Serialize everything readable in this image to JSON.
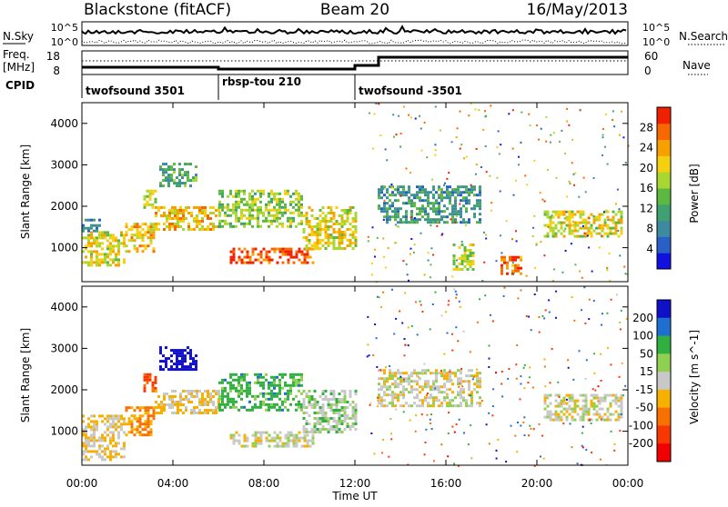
{
  "header": {
    "station": "Blackstone (fitACF)",
    "beam": "Beam 20",
    "date": "16/May/2013"
  },
  "noise_panel": {
    "left_label": "N.Sky",
    "right_label": "N.Search",
    "left_ticks": [
      "10^5",
      "10^0"
    ],
    "right_ticks": [
      "10^5",
      "10^0"
    ]
  },
  "freq_panel": {
    "left_label_line1": "Freq.",
    "left_label_line2": "[MHz]",
    "left_ticks": [
      "18",
      "8"
    ],
    "right_ticks": [
      "60",
      "0"
    ],
    "right_label": "Nave",
    "cpid_label": "CPID"
  },
  "cpid_modes": [
    {
      "name": "twofsound 3501",
      "start_hour": 0
    },
    {
      "name": "rbsp-tou 210",
      "start_hour": 6
    },
    {
      "name": "twofsound -3501",
      "start_hour": 12
    }
  ],
  "chart_data": [
    {
      "type": "heatmap",
      "name": "power",
      "ylabel": "Slant Range [km]",
      "yticks": [
        1000,
        2000,
        3000,
        4000
      ],
      "ylim": [
        180,
        4500
      ],
      "xlim": [
        0,
        24
      ],
      "colorbar": {
        "label": "Power [dB]",
        "ticks": [
          4,
          8,
          12,
          16,
          20,
          24,
          28
        ],
        "range": [
          0,
          32
        ],
        "colors": [
          "#1010e0",
          "#2860c8",
          "#3e8aa0",
          "#3fa070",
          "#5cb840",
          "#a8d830",
          "#f4d010",
          "#f8a000",
          "#f86800",
          "#f02000"
        ]
      },
      "regions": [
        {
          "hours": [
            0.0,
            1.9
          ],
          "range_km": [
            600,
            1400
          ],
          "level": 20
        },
        {
          "hours": [
            0.0,
            0.8
          ],
          "range_km": [
            1400,
            1700
          ],
          "level": 8
        },
        {
          "hours": [
            1.9,
            3.2
          ],
          "range_km": [
            900,
            1600
          ],
          "level": 22
        },
        {
          "hours": [
            2.7,
            3.3
          ],
          "range_km": [
            2000,
            2400
          ],
          "level": 18
        },
        {
          "hours": [
            3.4,
            5.0
          ],
          "range_km": [
            2500,
            3050
          ],
          "level": 12
        },
        {
          "hours": [
            3.2,
            6.0
          ],
          "range_km": [
            1450,
            2000
          ],
          "level": 22
        },
        {
          "hours": [
            6.0,
            9.7
          ],
          "range_km": [
            1500,
            2400
          ],
          "level": 16
        },
        {
          "hours": [
            6.5,
            10.2
          ],
          "range_km": [
            650,
            1000
          ],
          "level": 28
        },
        {
          "hours": [
            9.7,
            12.0
          ],
          "range_km": [
            1000,
            2000
          ],
          "level": 20
        },
        {
          "hours": [
            13.0,
            17.5
          ],
          "range_km": [
            1600,
            2500
          ],
          "level": 10
        },
        {
          "hours": [
            16.3,
            17.2
          ],
          "range_km": [
            500,
            1100
          ],
          "level": 18
        },
        {
          "hours": [
            18.4,
            19.3
          ],
          "range_km": [
            350,
            800
          ],
          "level": 26
        },
        {
          "hours": [
            20.3,
            23.7
          ],
          "range_km": [
            1300,
            1900
          ],
          "level": 20
        }
      ]
    },
    {
      "type": "heatmap",
      "name": "velocity",
      "xlabel": "Time UT",
      "ylabel": "Slant Range [km]",
      "xticks": [
        "00:00",
        "04:00",
        "08:00",
        "12:00",
        "16:00",
        "20:00",
        "00:00"
      ],
      "yticks": [
        1000,
        2000,
        3000,
        4000
      ],
      "ylim": [
        180,
        4500
      ],
      "xlim": [
        0,
        24
      ],
      "colorbar": {
        "label": "Velocity [m s^-1]",
        "ticks": [
          200,
          100,
          50,
          15,
          -15,
          -50,
          -100,
          -200
        ],
        "colors": [
          "#1010c8",
          "#1f6fd0",
          "#30b040",
          "#90d050",
          "#c8c8c8",
          "#f8b000",
          "#f87000",
          "#f83800",
          "#f00000"
        ]
      },
      "regions": [
        {
          "hours": [
            0.0,
            1.9
          ],
          "range_km": [
            300,
            1400
          ],
          "value": -15
        },
        {
          "hours": [
            1.9,
            3.2
          ],
          "range_km": [
            900,
            1600
          ],
          "value": -50
        },
        {
          "hours": [
            2.7,
            3.3
          ],
          "range_km": [
            2000,
            2400
          ],
          "value": -100
        },
        {
          "hours": [
            3.4,
            5.0
          ],
          "range_km": [
            2500,
            3050
          ],
          "value": 200
        },
        {
          "hours": [
            3.2,
            6.0
          ],
          "range_km": [
            1450,
            2000
          ],
          "value": -15
        },
        {
          "hours": [
            6.0,
            9.7
          ],
          "range_km": [
            1500,
            2400
          ],
          "value": 50
        },
        {
          "hours": [
            6.5,
            10.2
          ],
          "range_km": [
            650,
            1000
          ],
          "value": 0
        },
        {
          "hours": [
            9.7,
            12.0
          ],
          "range_km": [
            1000,
            2000
          ],
          "value": 15
        },
        {
          "hours": [
            13.0,
            17.5
          ],
          "range_km": [
            1600,
            2500
          ],
          "value": 0
        },
        {
          "hours": [
            20.3,
            23.7
          ],
          "range_km": [
            1300,
            1900
          ],
          "value": 0
        }
      ]
    }
  ]
}
